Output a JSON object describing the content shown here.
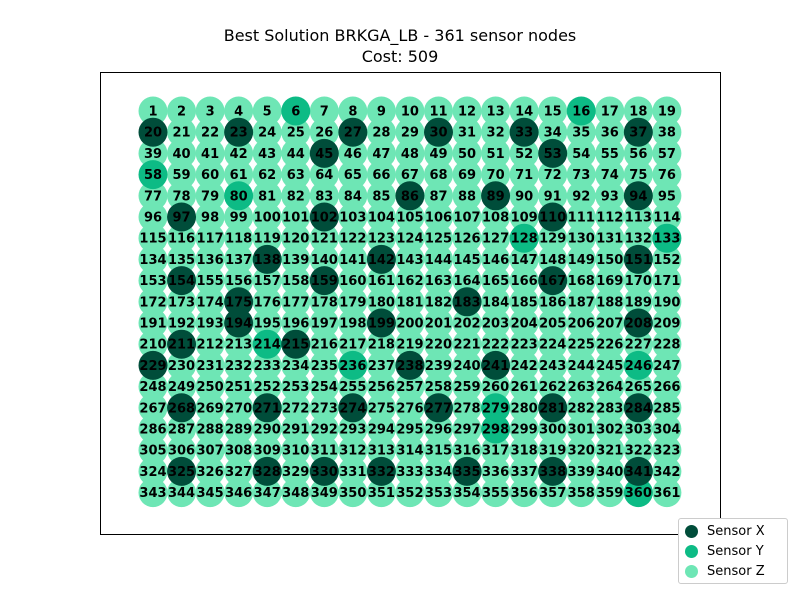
{
  "chart_data": {
    "type": "scatter",
    "title": "Best Solution BRKGA_LB - 361 sensor nodes",
    "subtitle": "Cost: 509",
    "grid_columns": 19,
    "grid_rows": 19,
    "node_count": 361,
    "grid": false,
    "axes_visible": false,
    "legend_position": "bottom-right",
    "series": [
      {
        "name": "Sensor X",
        "color": "#004d3a",
        "nodes": [
          20,
          23,
          27,
          30,
          33,
          37,
          45,
          53,
          86,
          89,
          94,
          97,
          102,
          110,
          138,
          142,
          151,
          154,
          159,
          167,
          175,
          183,
          194,
          199,
          208,
          211,
          215,
          229,
          238,
          241,
          268,
          271,
          274,
          277,
          281,
          284,
          325,
          328,
          330,
          332,
          335,
          338,
          341
        ]
      },
      {
        "name": "Sensor Y",
        "color": "#0dbb85",
        "nodes": [
          6,
          16,
          58,
          80,
          128,
          133,
          214,
          236,
          246,
          279,
          298,
          360
        ]
      },
      {
        "name": "Sensor Z",
        "color": "#6ee6b5",
        "nodes": "all remaining nodes 1-361"
      }
    ]
  }
}
